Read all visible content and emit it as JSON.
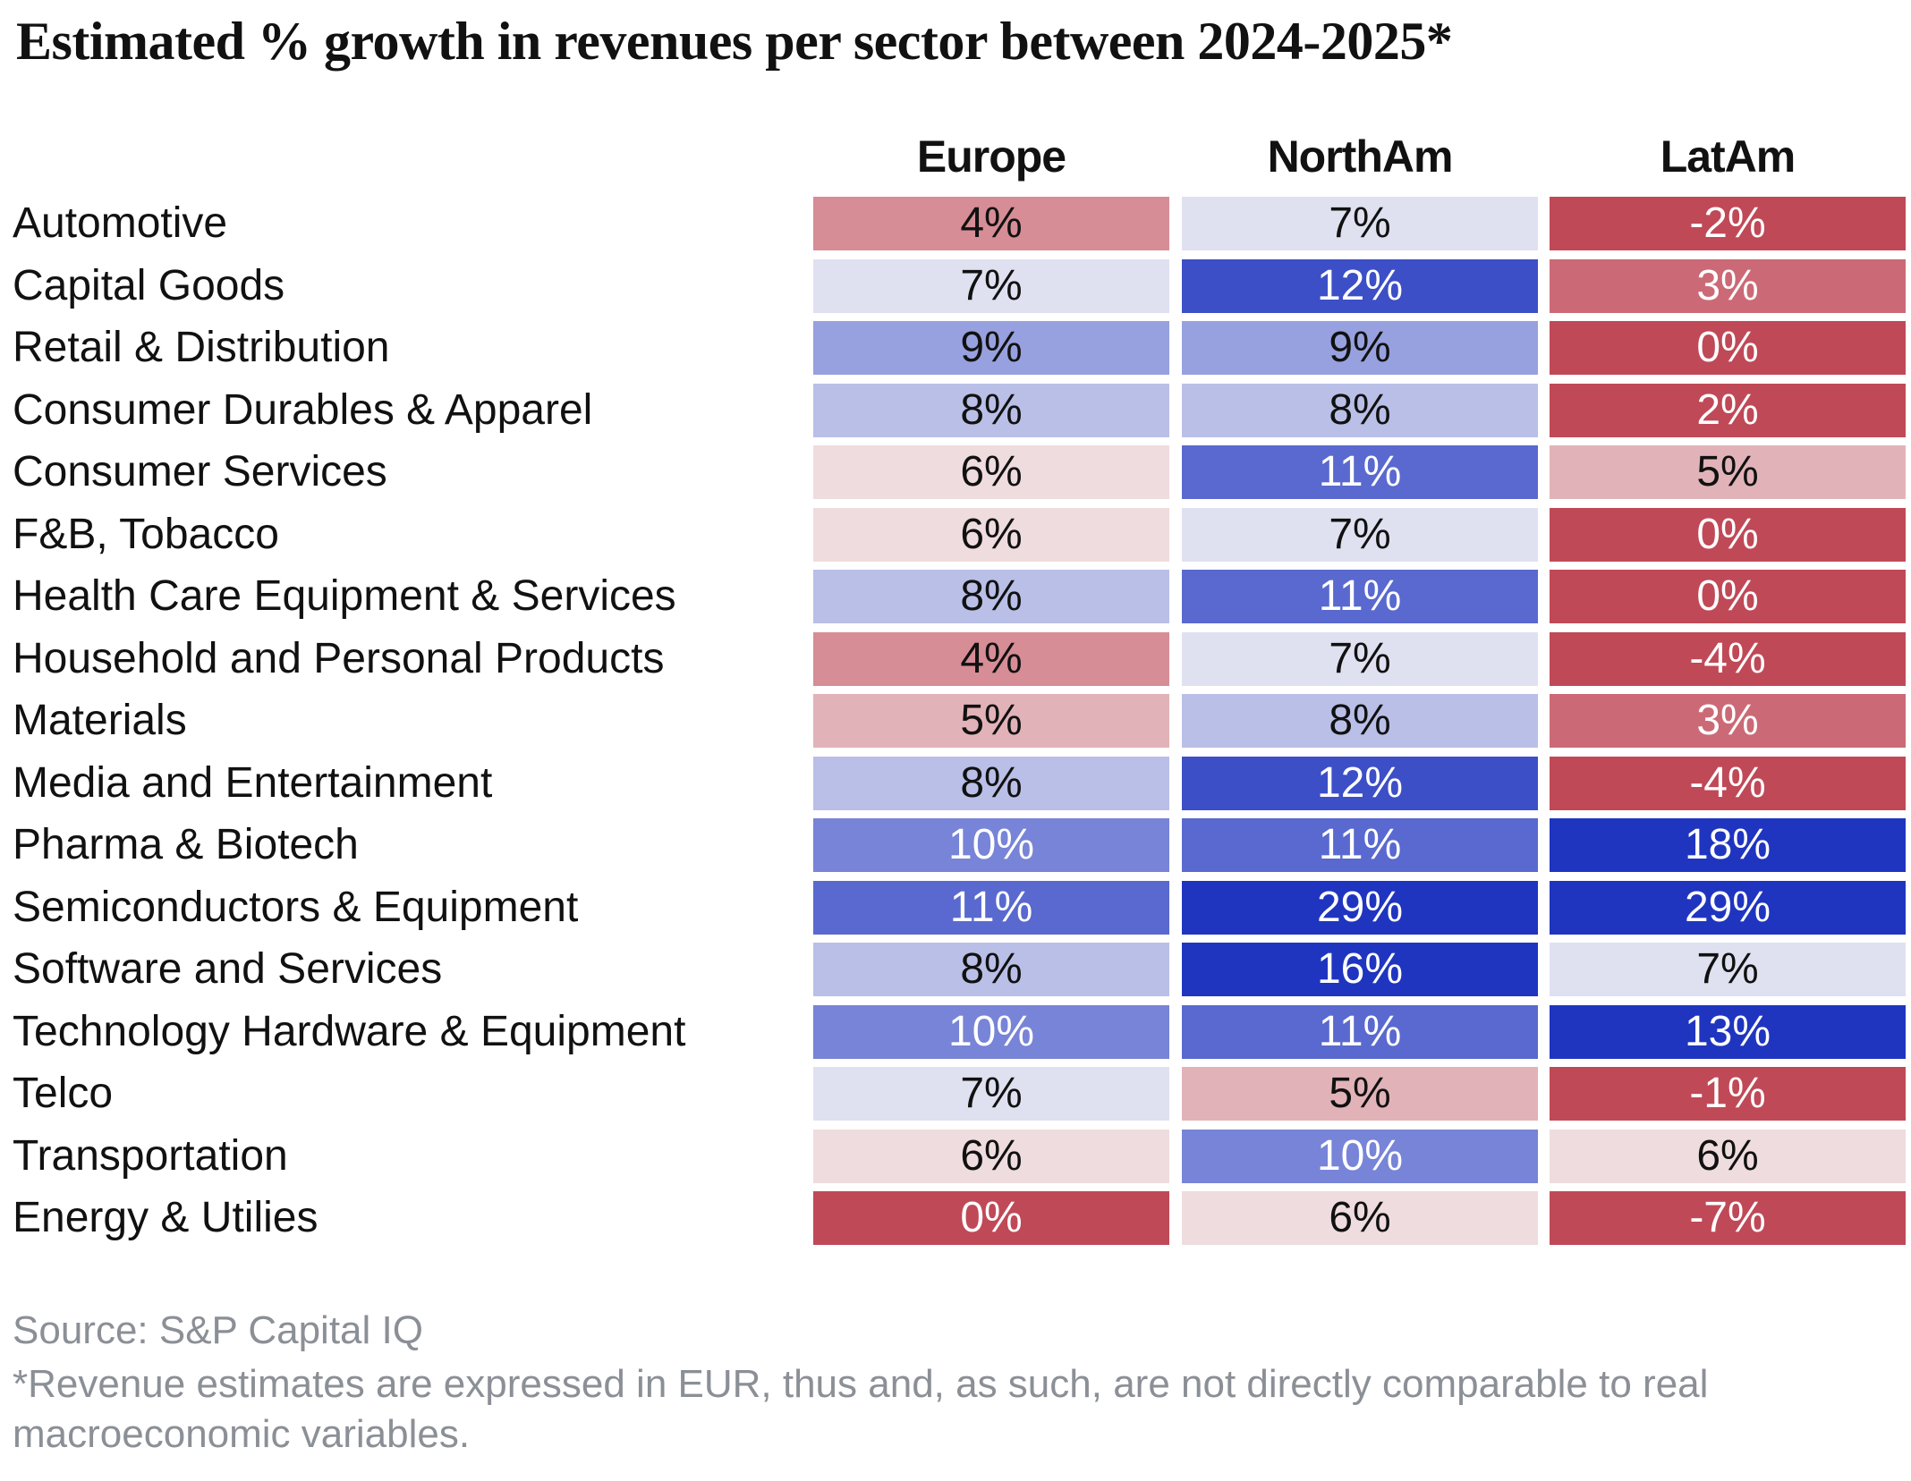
{
  "title": "Estimated % growth in revenues per sector between 2024-2025*",
  "source": "Source: S&P Capital IQ",
  "footnote": "*Revenue estimates are expressed in EUR, thus and, as such, are not directly comparable to real macroeconomic variables.",
  "colors": {
    "negative_max": "#c04957",
    "neutral": "#f7f7f7",
    "positive_max": "#1f35c0"
  },
  "chart_data": {
    "type": "heatmap",
    "title": "Estimated % growth in revenues per sector between 2024-2025*",
    "columns": [
      "Europe",
      "NorthAm",
      "LatAm"
    ],
    "rows": [
      "Automotive",
      "Capital Goods",
      "Retail & Distribution",
      "Consumer Durables & Apparel",
      "Consumer Services",
      "F&B, Tobacco",
      "Health Care Equipment & Services",
      "Household and Personal Products",
      "Materials",
      "Media and Entertainment",
      "Pharma & Biotech",
      "Semiconductors & Equipment",
      "Software and Services",
      "Technology Hardware & Equipment",
      "Telco",
      "Transportation",
      "Energy & Utilies"
    ],
    "values": [
      [
        4,
        7,
        -2
      ],
      [
        7,
        12,
        3
      ],
      [
        9,
        9,
        0
      ],
      [
        8,
        8,
        2
      ],
      [
        6,
        11,
        5
      ],
      [
        6,
        7,
        0
      ],
      [
        8,
        11,
        0
      ],
      [
        4,
        7,
        -4
      ],
      [
        5,
        8,
        3
      ],
      [
        8,
        12,
        -4
      ],
      [
        10,
        11,
        18
      ],
      [
        11,
        29,
        29
      ],
      [
        8,
        16,
        7
      ],
      [
        10,
        11,
        13
      ],
      [
        7,
        5,
        -1
      ],
      [
        6,
        10,
        6
      ],
      [
        0,
        6,
        -7
      ]
    ],
    "labels": [
      [
        "4%",
        "7%",
        "-2%"
      ],
      [
        "7%",
        "12%",
        "3%"
      ],
      [
        "9%",
        "9%",
        "0%"
      ],
      [
        "8%",
        "8%",
        "2%"
      ],
      [
        "6%",
        "11%",
        "5%"
      ],
      [
        "6%",
        "7%",
        "0%"
      ],
      [
        "8%",
        "11%",
        "0%"
      ],
      [
        "4%",
        "7%",
        "-4%"
      ],
      [
        "5%",
        "8%",
        "3%"
      ],
      [
        "8%",
        "12%",
        "-4%"
      ],
      [
        "10%",
        "11%",
        "18%"
      ],
      [
        "11%",
        "29%",
        "29%"
      ],
      [
        "8%",
        "16%",
        "7%"
      ],
      [
        "10%",
        "11%",
        "13%"
      ],
      [
        "7%",
        "5%",
        "-1%"
      ],
      [
        "6%",
        "10%",
        "6%"
      ],
      [
        "0%",
        "6%",
        "-7%"
      ]
    ],
    "color_scale": {
      "center": 6.5,
      "low_saturation": 2,
      "high_saturation": 13
    },
    "unit": "%"
  }
}
